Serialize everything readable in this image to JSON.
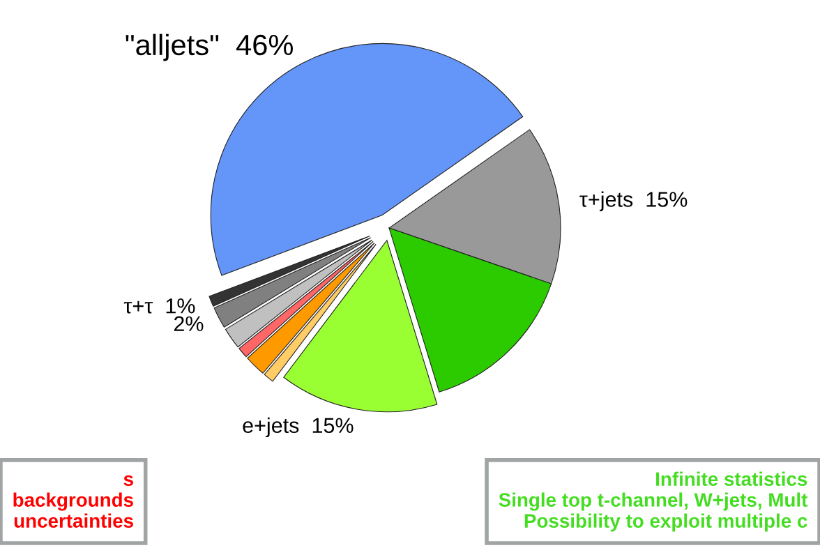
{
  "chart_data": {
    "type": "pie",
    "categories": [
      "τ+jets",
      "\"alljets\"",
      "τ+τ",
      null,
      null,
      null,
      null,
      null,
      "e+jets",
      null
    ],
    "values": [
      15,
      46,
      1,
      2,
      2,
      1,
      2,
      1,
      15,
      15
    ],
    "value_labels": [
      "15%",
      "46%",
      "1%",
      "2%",
      null,
      null,
      null,
      null,
      "15%",
      null
    ],
    "colors": [
      "#999999",
      "#6495f9",
      "#333333",
      "#808080",
      "#c0c0c0",
      "#ff6666",
      "#ff9900",
      "#ffcc66",
      "#99ff33",
      "#2bcb00"
    ],
    "annotations": [
      "s\nbackgrounds\nuncertainties",
      "Infinite statistics\nSingle top t-channel, W+jets, Mult\nPossibility to exploit multiple c"
    ]
  }
}
